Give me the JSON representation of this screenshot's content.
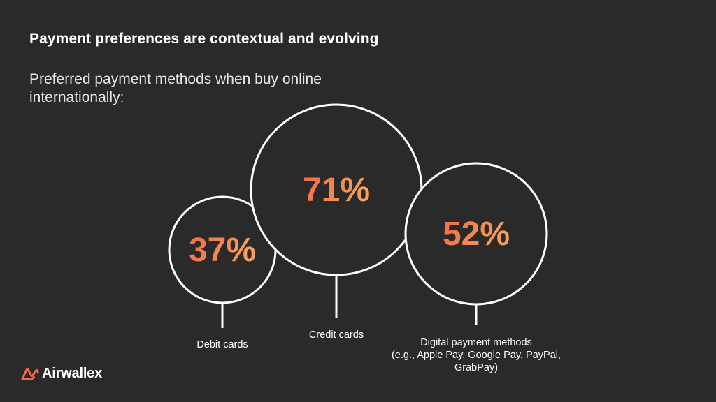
{
  "slide": {
    "title": "Payment preferences are contextual and evolving",
    "subtitle": "Preferred payment methods when buy online internationally:"
  },
  "brand": {
    "name": "Airwallex",
    "logo_icon": "airwallex-logo-icon",
    "accent_color": "#f26a46"
  },
  "chart_data": {
    "type": "bubble",
    "title": "",
    "unit": "%",
    "categories": [
      "Debit cards",
      "Credit cards",
      "Digital payment methods (e.g., Apple Pay, Google Pay, PayPal, GrabPay)"
    ],
    "category_label_lines": [
      [
        "Debit cards"
      ],
      [
        "Credit cards"
      ],
      [
        "Digital payment methods",
        "(e.g., Apple Pay, Google Pay, PayPal,",
        "GrabPay)"
      ]
    ],
    "values": [
      37,
      71,
      52
    ],
    "value_labels": [
      "37%",
      "71%",
      "52%"
    ],
    "colors": {
      "gradient_start": "#f26a46",
      "gradient_end": "#f5a05a",
      "circle_stroke": "#ffffff"
    }
  }
}
